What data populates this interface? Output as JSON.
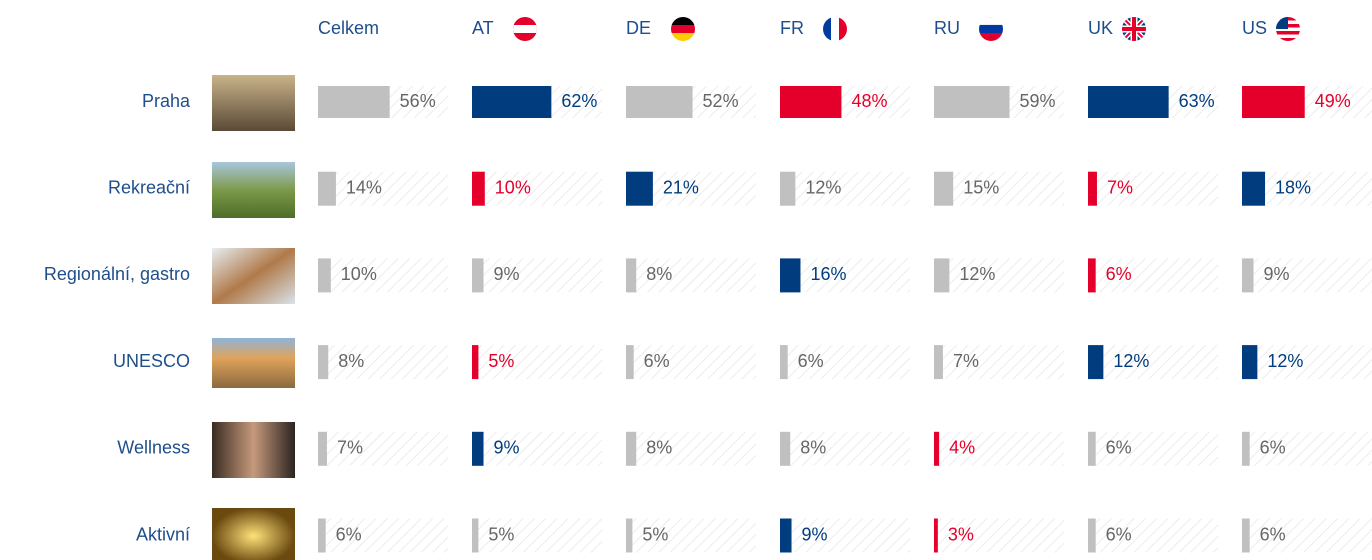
{
  "chart_data": {
    "type": "bar-table",
    "categories": [
      "Praha",
      "Rekreační",
      "Regionální, gastro",
      "UNESCO",
      "Wellness",
      "Aktivní"
    ],
    "xlim": [
      0,
      100
    ],
    "series": [
      {
        "name": "Celkem",
        "values": [
          56,
          14,
          10,
          8,
          7,
          6
        ],
        "value_labels": [
          "56%",
          "14%",
          "10%",
          "8%",
          "7%",
          "6%"
        ],
        "colors": [
          "#c0c0c0",
          "#c0c0c0",
          "#c0c0c0",
          "#c0c0c0",
          "#c0c0c0",
          "#c0c0c0"
        ]
      },
      {
        "name": "AT",
        "values": [
          62,
          10,
          9,
          5,
          9,
          5
        ],
        "value_labels": [
          "62%",
          "10%",
          "9%",
          "5%",
          "9%",
          "5%"
        ],
        "colors": [
          "#003c7e",
          "#e4002b",
          "#c0c0c0",
          "#e4002b",
          "#003c7e",
          "#c0c0c0"
        ]
      },
      {
        "name": "DE",
        "values": [
          52,
          21,
          8,
          6,
          8,
          5
        ],
        "value_labels": [
          "52%",
          "21%",
          "8%",
          "6%",
          "8%",
          "5%"
        ],
        "colors": [
          "#c0c0c0",
          "#003c7e",
          "#c0c0c0",
          "#c0c0c0",
          "#c0c0c0",
          "#c0c0c0"
        ]
      },
      {
        "name": "FR",
        "values": [
          48,
          12,
          16,
          6,
          8,
          9
        ],
        "value_labels": [
          "48%",
          "12%",
          "16%",
          "6%",
          "8%",
          "9%"
        ],
        "colors": [
          "#e4002b",
          "#c0c0c0",
          "#003c7e",
          "#c0c0c0",
          "#c0c0c0",
          "#003c7e"
        ]
      },
      {
        "name": "RU",
        "values": [
          59,
          15,
          12,
          7,
          4,
          3
        ],
        "value_labels": [
          "59%",
          "15%",
          "12%",
          "7%",
          "4%",
          "3%"
        ],
        "colors": [
          "#c0c0c0",
          "#c0c0c0",
          "#c0c0c0",
          "#c0c0c0",
          "#e4002b",
          "#e4002b"
        ]
      },
      {
        "name": "UK",
        "values": [
          63,
          7,
          6,
          12,
          6,
          6
        ],
        "value_labels": [
          "63%",
          "7%",
          "6%",
          "12%",
          "6%",
          "6%"
        ],
        "colors": [
          "#003c7e",
          "#e4002b",
          "#e4002b",
          "#003c7e",
          "#c0c0c0",
          "#c0c0c0"
        ]
      },
      {
        "name": "US",
        "values": [
          49,
          18,
          9,
          12,
          6,
          6
        ],
        "value_labels": [
          "49%",
          "18%",
          "9%",
          "12%",
          "6%",
          "6%"
        ],
        "colors": [
          "#e4002b",
          "#003c7e",
          "#c0c0c0",
          "#003c7e",
          "#c0c0c0",
          "#c0c0c0"
        ]
      }
    ]
  }
}
